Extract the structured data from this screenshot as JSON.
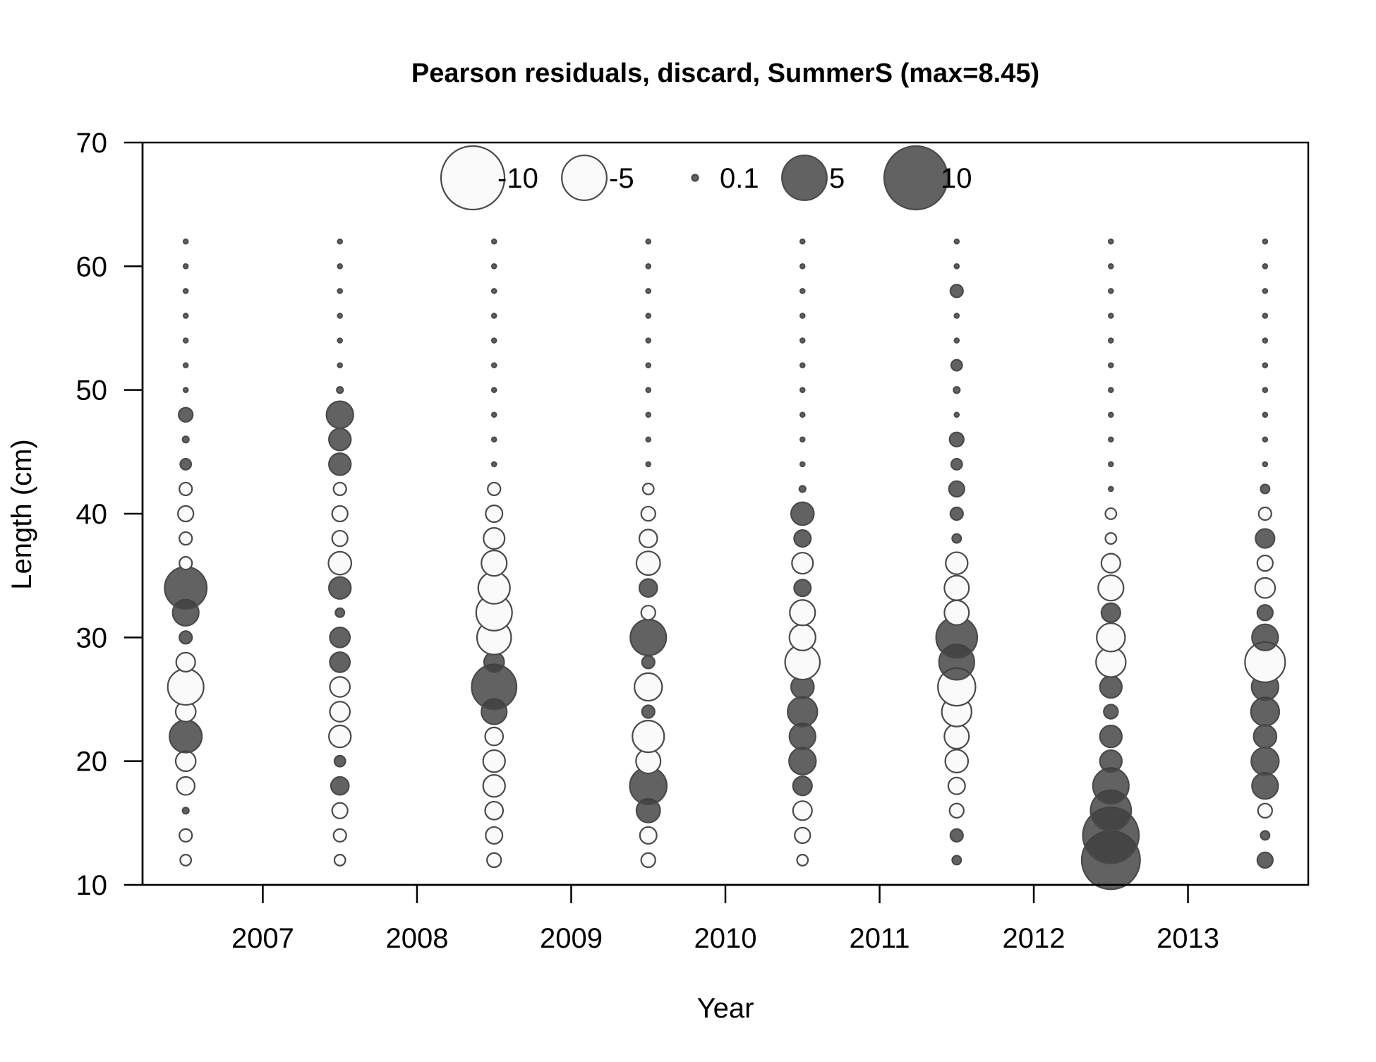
{
  "chart_data": {
    "type": "scatter",
    "subtype": "bubble",
    "title": "Pearson residuals, discard, SummerS (max=8.45)",
    "xlabel": "Year",
    "ylabel": "Length (cm)",
    "xlim": [
      2006.22,
      2013.78
    ],
    "ylim": [
      10,
      70
    ],
    "x_ticks": [
      2007,
      2008,
      2009,
      2010,
      2011,
      2012,
      2013
    ],
    "x_tick_labels": [
      "2007",
      "2008",
      "2009",
      "2010",
      "2011",
      "2012",
      "2013"
    ],
    "y_ticks": [
      10,
      20,
      30,
      40,
      50,
      60,
      70
    ],
    "y_tick_labels": [
      "10",
      "20",
      "30",
      "40",
      "50",
      "60",
      "70"
    ],
    "legend": {
      "placement": "top-center",
      "entries": [
        {
          "label": "-10",
          "value": -10
        },
        {
          "label": "-5",
          "value": -5
        },
        {
          "label": "0.1",
          "value": 0.1
        },
        {
          "label": "5",
          "value": 5
        },
        {
          "label": "10",
          "value": 10
        }
      ]
    },
    "colors": {
      "positive_fill": "#3f3f3f",
      "negative_fill": "#fafafa",
      "stroke": "#4a4a4a"
    },
    "lengths": [
      12,
      14,
      16,
      18,
      20,
      22,
      24,
      26,
      28,
      30,
      32,
      34,
      36,
      38,
      40,
      42,
      44,
      46,
      48,
      50,
      52,
      54,
      56,
      58,
      60,
      62
    ],
    "series": [
      {
        "year": 2006.5,
        "residuals": [
          -0.3,
          -0.4,
          0.1,
          -0.8,
          -1.0,
          2.6,
          -1.0,
          -3.2,
          -0.9,
          0.4,
          1.7,
          4.4,
          -0.4,
          -0.4,
          -0.6,
          -0.4,
          0.3,
          0.1,
          0.5,
          0.05,
          0.05,
          0.05,
          0.05,
          0.05,
          0.05,
          0.05
        ]
      },
      {
        "year": 2007.5,
        "residuals": [
          -0.3,
          -0.4,
          -0.6,
          0.8,
          0.3,
          -1.2,
          -1.0,
          -1.0,
          1.0,
          1.0,
          0.2,
          1.2,
          -1.3,
          -0.6,
          -0.6,
          -0.4,
          1.2,
          1.2,
          1.8,
          0.1,
          0.05,
          0.05,
          0.05,
          0.05,
          0.05,
          0.05
        ]
      },
      {
        "year": 2008.5,
        "residuals": [
          -0.5,
          -0.7,
          -0.8,
          -1.2,
          -1.2,
          -0.8,
          1.6,
          5.0,
          1.0,
          -2.9,
          -3.2,
          -2.5,
          -1.6,
          -1.1,
          -0.7,
          -0.4,
          0.05,
          0.05,
          0.05,
          0.05,
          0.05,
          0.05,
          0.05,
          0.05,
          0.05,
          0.05
        ]
      },
      {
        "year": 2009.5,
        "residuals": [
          -0.5,
          -0.7,
          1.4,
          3.4,
          -1.5,
          -2.5,
          0.4,
          -1.9,
          0.4,
          3.2,
          -0.5,
          0.8,
          -1.4,
          -0.8,
          -0.5,
          -0.3,
          0.05,
          0.05,
          0.05,
          0.05,
          0.05,
          0.05,
          0.05,
          0.05,
          0.05,
          0.05
        ]
      },
      {
        "year": 2010.5,
        "residuals": [
          -0.3,
          -0.6,
          -0.9,
          0.9,
          1.8,
          1.7,
          2.2,
          1.3,
          -3.0,
          -1.7,
          -1.6,
          0.7,
          -1.1,
          0.7,
          1.3,
          0.1,
          0.05,
          0.05,
          0.05,
          0.05,
          0.05,
          0.05,
          0.05,
          0.05,
          0.05,
          0.05
        ]
      },
      {
        "year": 2011.5,
        "residuals": [
          0.2,
          0.4,
          -0.5,
          -0.7,
          -1.3,
          -1.5,
          -2.2,
          -3.5,
          3.1,
          4.2,
          -1.5,
          -1.5,
          -1.2,
          0.2,
          0.4,
          0.6,
          0.3,
          0.5,
          0.05,
          0.1,
          0.3,
          0.05,
          0.05,
          0.4,
          0.05,
          0.05
        ]
      },
      {
        "year": 2012.5,
        "residuals": [
          8.45,
          7.8,
          4.1,
          3.2,
          1.2,
          1.2,
          0.5,
          1.2,
          -2.2,
          -2.0,
          0.9,
          -1.6,
          -0.9,
          -0.3,
          -0.3,
          0.05,
          0.05,
          0.05,
          0.05,
          0.05,
          0.05,
          0.05,
          0.05,
          0.05,
          0.05,
          0.05
        ]
      },
      {
        "year": 2013.5,
        "residuals": [
          0.6,
          0.2,
          -0.5,
          1.7,
          1.9,
          1.3,
          2.0,
          1.8,
          -4.0,
          1.7,
          0.6,
          -1.0,
          -0.6,
          0.9,
          -0.4,
          0.2,
          0.05,
          0.05,
          0.05,
          0.05,
          0.05,
          0.05,
          0.05,
          0.05,
          0.05,
          0.05
        ]
      }
    ]
  }
}
